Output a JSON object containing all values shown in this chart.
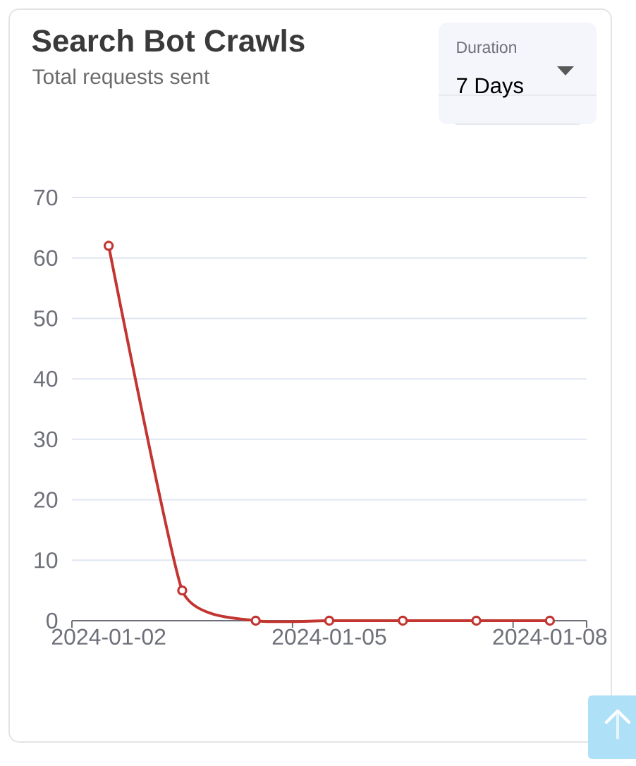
{
  "chart_data": {
    "type": "line",
    "title": "Search Bot Crawls",
    "subtitle": "Total requests sent",
    "annotations": [
      "Duration",
      "7 Days"
    ],
    "categories": [
      "2024-01-02",
      null,
      null,
      "2024-01-05",
      null,
      null,
      "2024-01-08"
    ],
    "series": [
      {
        "color": "#c23531",
        "values": [
          62,
          5,
          0,
          0,
          0,
          0,
          0
        ]
      }
    ],
    "ylim": [
      0,
      70
    ],
    "yticks": [
      0,
      10,
      20,
      30,
      40,
      50,
      60,
      70
    ],
    "grid": "y",
    "marker": "circle",
    "line_style": "solid"
  }
}
